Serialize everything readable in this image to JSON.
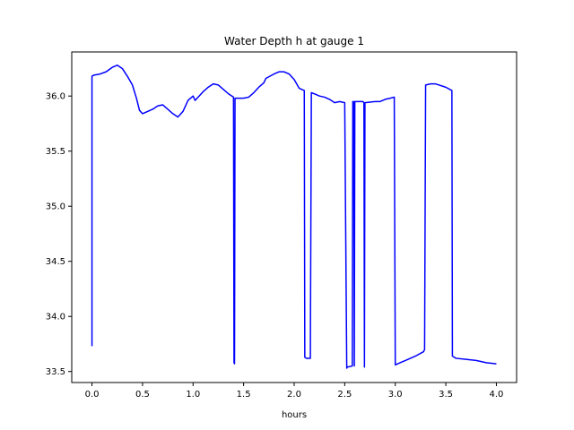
{
  "chart_data": {
    "type": "line",
    "title": "Water Depth h at gauge 1",
    "xlabel": "hours",
    "ylabel": "",
    "xlim": [
      -0.2,
      4.2
    ],
    "ylim": [
      33.4,
      36.4
    ],
    "xticks": [
      0.0,
      0.5,
      1.0,
      1.5,
      2.0,
      2.5,
      3.0,
      3.5,
      4.0
    ],
    "xtick_labels": [
      "0.0",
      "0.5",
      "1.0",
      "1.5",
      "2.0",
      "2.5",
      "3.0",
      "3.5",
      "4.0"
    ],
    "yticks": [
      33.5,
      34.0,
      34.5,
      35.0,
      35.5,
      36.0
    ],
    "ytick_labels": [
      "33.5",
      "34.0",
      "34.5",
      "35.0",
      "35.5",
      "36.0"
    ],
    "grid": false,
    "series": [
      {
        "name": "",
        "color": "#0000ff",
        "x": [
          0.0,
          0.0,
          0.02,
          0.08,
          0.14,
          0.2,
          0.25,
          0.3,
          0.35,
          0.4,
          0.44,
          0.47,
          0.5,
          0.55,
          0.6,
          0.65,
          0.7,
          0.75,
          0.8,
          0.85,
          0.9,
          0.95,
          1.0,
          1.02,
          1.04,
          1.06,
          1.1,
          1.15,
          1.2,
          1.25,
          1.3,
          1.35,
          1.4,
          1.405,
          1.41,
          1.415,
          1.42,
          1.45,
          1.5,
          1.55,
          1.6,
          1.65,
          1.7,
          1.72,
          1.8,
          1.85,
          1.9,
          1.95,
          2.0,
          2.05,
          2.1,
          2.105,
          2.12,
          2.16,
          2.17,
          2.2,
          2.25,
          2.3,
          2.35,
          2.4,
          2.45,
          2.5,
          2.52,
          2.525,
          2.575,
          2.58,
          2.59,
          2.595,
          2.6,
          2.65,
          2.68,
          2.69,
          2.695,
          2.7,
          2.8,
          2.85,
          2.9,
          2.95,
          2.99,
          3.0,
          3.05,
          3.1,
          3.2,
          3.28,
          3.29,
          3.3,
          3.35,
          3.4,
          3.5,
          3.56,
          3.565,
          3.6,
          3.7,
          3.8,
          3.85,
          3.9,
          4.0
        ],
        "values": [
          33.73,
          36.18,
          36.19,
          36.2,
          36.22,
          36.26,
          36.28,
          36.25,
          36.18,
          36.1,
          35.98,
          35.87,
          35.84,
          35.86,
          35.88,
          35.91,
          35.92,
          35.88,
          35.84,
          35.81,
          35.86,
          35.96,
          36.0,
          35.96,
          35.98,
          36.0,
          36.04,
          36.08,
          36.11,
          36.1,
          36.06,
          36.02,
          35.99,
          33.58,
          33.57,
          35.98,
          35.98,
          35.98,
          35.98,
          35.99,
          36.03,
          36.08,
          36.12,
          36.16,
          36.2,
          36.22,
          36.22,
          36.2,
          36.15,
          36.07,
          36.05,
          33.63,
          33.62,
          33.62,
          36.03,
          36.02,
          36.0,
          35.99,
          35.97,
          35.94,
          35.95,
          35.94,
          33.53,
          33.54,
          33.55,
          35.95,
          35.95,
          33.55,
          35.95,
          35.95,
          35.95,
          35.94,
          33.54,
          35.94,
          35.95,
          35.95,
          35.97,
          35.98,
          35.99,
          33.56,
          33.58,
          33.6,
          33.64,
          33.68,
          33.7,
          36.1,
          36.11,
          36.11,
          36.08,
          36.05,
          33.64,
          33.62,
          33.61,
          33.6,
          33.59,
          33.58,
          33.57
        ]
      }
    ]
  }
}
